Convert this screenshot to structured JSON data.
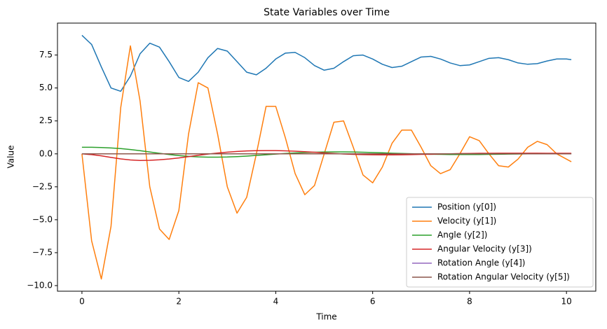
{
  "chart_data": {
    "type": "line",
    "title": "State Variables over Time",
    "x_label": "Time",
    "y_label": "Value",
    "x": [
      0,
      0.2,
      0.4,
      0.6,
      0.8,
      1,
      1.2,
      1.4,
      1.6,
      1.8,
      2,
      2.2,
      2.4,
      2.6,
      2.8,
      3,
      3.2,
      3.4,
      3.6,
      3.8,
      4,
      4.2,
      4.4,
      4.6,
      4.8,
      5,
      5.2,
      5.4,
      5.6,
      5.8,
      6,
      6.2,
      6.4,
      6.6,
      6.8,
      7,
      7.2,
      7.4,
      7.6,
      7.8,
      8,
      8.2,
      8.4,
      8.6,
      8.8,
      9,
      9.2,
      9.4,
      9.6,
      9.8,
      10,
      10.1
    ],
    "series": [
      {
        "name": "Position (y[0])",
        "color": "#1f77b4",
        "values": [
          9.0,
          8.3,
          6.6,
          5.0,
          4.75,
          5.9,
          7.6,
          8.4,
          8.1,
          7.0,
          5.8,
          5.5,
          6.2,
          7.3,
          8.0,
          7.8,
          7.0,
          6.2,
          6.0,
          6.5,
          7.2,
          7.65,
          7.7,
          7.3,
          6.7,
          6.35,
          6.5,
          7.0,
          7.45,
          7.5,
          7.2,
          6.8,
          6.55,
          6.65,
          7.0,
          7.35,
          7.4,
          7.2,
          6.9,
          6.7,
          6.75,
          7.0,
          7.25,
          7.3,
          7.15,
          6.9,
          6.8,
          6.85,
          7.05,
          7.2,
          7.2,
          7.15
        ]
      },
      {
        "name": "Velocity (y[1])",
        "color": "#ff7f0e",
        "values": [
          0,
          -6.6,
          -9.5,
          -5.5,
          3.5,
          8.2,
          4.0,
          -2.5,
          -5.7,
          -6.5,
          -4.3,
          1.5,
          5.4,
          5.0,
          1.5,
          -2.5,
          -4.5,
          -3.3,
          0.0,
          3.6,
          3.6,
          1.2,
          -1.5,
          -3.1,
          -2.4,
          0.0,
          2.4,
          2.5,
          0.5,
          -1.6,
          -2.2,
          -1.0,
          0.8,
          1.8,
          1.8,
          0.5,
          -0.9,
          -1.5,
          -1.2,
          0.0,
          1.3,
          1.0,
          0.0,
          -0.9,
          -1.0,
          -0.4,
          0.5,
          0.95,
          0.7,
          0.0,
          -0.4,
          -0.6
        ]
      },
      {
        "name": "Angle (y[2])",
        "color": "#2ca02c",
        "values": [
          0.5,
          0.5,
          0.48,
          0.45,
          0.4,
          0.33,
          0.24,
          0.14,
          0.04,
          -0.05,
          -0.13,
          -0.19,
          -0.23,
          -0.25,
          -0.25,
          -0.24,
          -0.21,
          -0.17,
          -0.12,
          -0.07,
          -0.02,
          0.03,
          0.07,
          0.1,
          0.12,
          0.14,
          0.15,
          0.15,
          0.14,
          0.12,
          0.1,
          0.08,
          0.05,
          0.03,
          0.01,
          -0.01,
          -0.03,
          -0.04,
          -0.05,
          -0.05,
          -0.05,
          -0.05,
          -0.04,
          -0.03,
          -0.02,
          -0.01,
          0.0,
          0.01,
          0.02,
          0.02,
          0.03,
          0.03
        ]
      },
      {
        "name": "Angular Velocity (y[3])",
        "color": "#d62728",
        "values": [
          0,
          -0.06,
          -0.15,
          -0.27,
          -0.38,
          -0.46,
          -0.5,
          -0.49,
          -0.45,
          -0.39,
          -0.31,
          -0.21,
          -0.11,
          -0.02,
          0.06,
          0.13,
          0.18,
          0.22,
          0.24,
          0.25,
          0.25,
          0.23,
          0.2,
          0.16,
          0.12,
          0.07,
          0.03,
          -0.01,
          -0.04,
          -0.06,
          -0.07,
          -0.08,
          -0.08,
          -0.07,
          -0.06,
          -0.04,
          -0.03,
          -0.01,
          0.0,
          0.02,
          0.03,
          0.04,
          0.04,
          0.05,
          0.05,
          0.05,
          0.05,
          0.05,
          0.04,
          0.04,
          0.04,
          0.04
        ]
      },
      {
        "name": "Rotation Angle (y[4])",
        "color": "#9467bd",
        "values": [
          0,
          0,
          0,
          0,
          0,
          0,
          0,
          0,
          0,
          0,
          0,
          0,
          0,
          0,
          0,
          0,
          0,
          0,
          0,
          0,
          0,
          0,
          0,
          0,
          0,
          0,
          0,
          0,
          0,
          0,
          0,
          0,
          0,
          0,
          0,
          0,
          0,
          0,
          0,
          0,
          0,
          0,
          0,
          0,
          0,
          0,
          0,
          0,
          0,
          0,
          0,
          0
        ]
      },
      {
        "name": "Rotation Angular Velocity (y[5])",
        "color": "#8c564b",
        "values": [
          0,
          0,
          0,
          0,
          0,
          0,
          0,
          0,
          0,
          0,
          0,
          0,
          0,
          0,
          0,
          0,
          0,
          0,
          0,
          0,
          0,
          0,
          0,
          0,
          0,
          0,
          0,
          0,
          0,
          0,
          0,
          0,
          0,
          0,
          0,
          0,
          0,
          0,
          0,
          0,
          0,
          0,
          0,
          0,
          0,
          0,
          0,
          0,
          0,
          0,
          0,
          0
        ]
      }
    ],
    "xlim": [
      -0.505,
      10.605
    ],
    "xticks": [
      0,
      2,
      4,
      6,
      8,
      10
    ],
    "ylim": [
      -10.425,
      9.925
    ],
    "yticks": [
      {
        "value": -10,
        "label": "−10.0"
      },
      {
        "value": -7.5,
        "label": "−7.5"
      },
      {
        "value": -5,
        "label": "−5.0"
      },
      {
        "value": -2.5,
        "label": "−2.5"
      },
      {
        "value": 0,
        "label": "0.0"
      },
      2.5,
      {
        "value": 5,
        "label": "5.0"
      },
      7.5
    ],
    "grid": false,
    "legend": "lower right"
  }
}
